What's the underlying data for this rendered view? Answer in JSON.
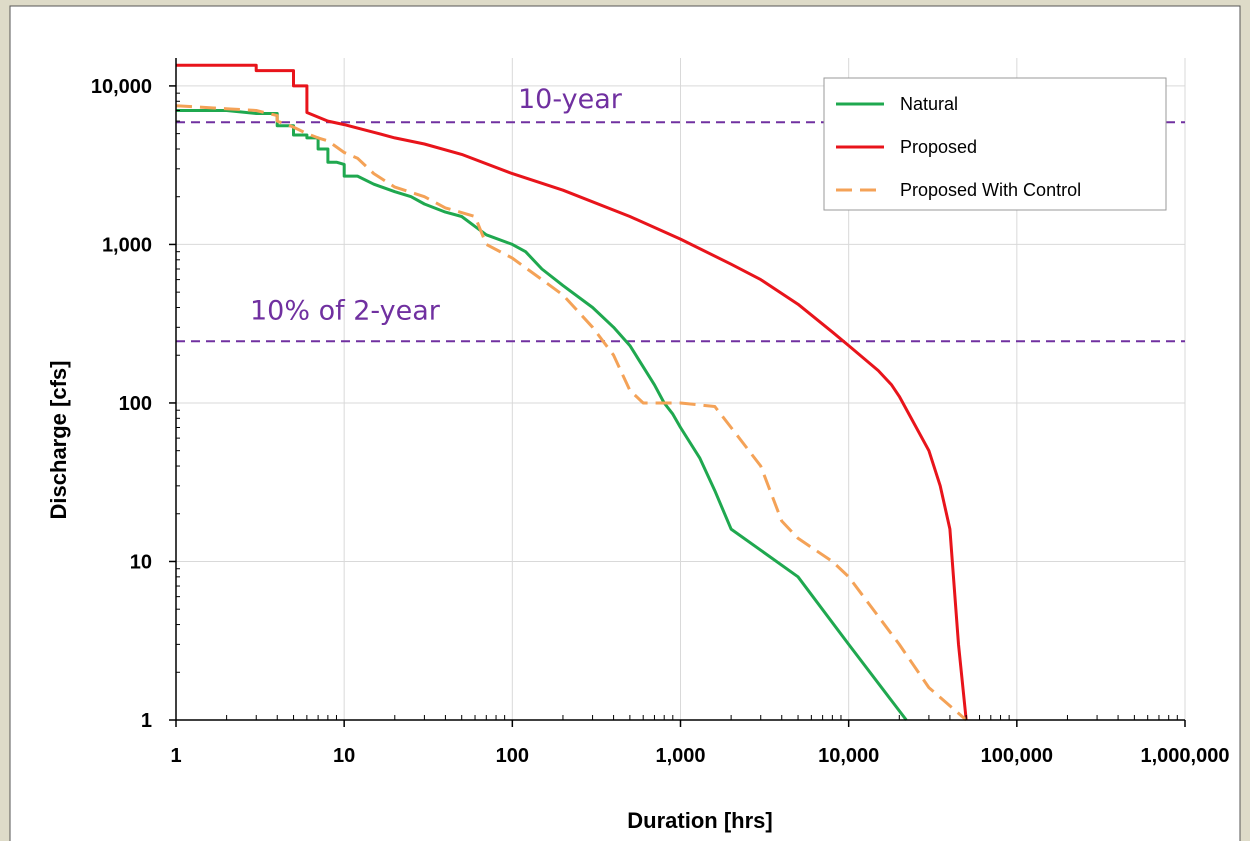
{
  "chart_data": {
    "type": "line",
    "xlabel": "Duration [hrs]",
    "ylabel": "Discharge [cfs]",
    "xscale": "log",
    "yscale": "log",
    "xlim": [
      1,
      1000000
    ],
    "ylim": [
      1,
      15000
    ],
    "grid": true,
    "legend_position": "top-right",
    "x_ticks": [
      {
        "value": 1,
        "label": "1"
      },
      {
        "value": 10,
        "label": "10"
      },
      {
        "value": 100,
        "label": "100"
      },
      {
        "value": 1000,
        "label": "1,000"
      },
      {
        "value": 10000,
        "label": "10,000"
      },
      {
        "value": 100000,
        "label": "100,000"
      },
      {
        "value": 1000000,
        "label": "1,000,000"
      }
    ],
    "y_ticks": [
      {
        "value": 1,
        "label": "1"
      },
      {
        "value": 10,
        "label": "10"
      },
      {
        "value": 100,
        "label": "100"
      },
      {
        "value": 1000,
        "label": "1,000"
      },
      {
        "value": 10000,
        "label": "10,000"
      }
    ],
    "reference_lines": [
      {
        "label": "10-year",
        "value": 5900,
        "color": "#7030a0"
      },
      {
        "label": "10% of 2-year",
        "value": 245,
        "color": "#7030a0"
      }
    ],
    "series": [
      {
        "name": "Natural",
        "color": "#1fa84f",
        "style": "solid",
        "points": [
          [
            1,
            7000
          ],
          [
            2,
            7000
          ],
          [
            3,
            6700
          ],
          [
            4,
            6700
          ],
          [
            4,
            5600
          ],
          [
            5,
            5600
          ],
          [
            5,
            4900
          ],
          [
            6,
            4900
          ],
          [
            6,
            4700
          ],
          [
            7,
            4700
          ],
          [
            7,
            4000
          ],
          [
            8,
            4000
          ],
          [
            8,
            3300
          ],
          [
            9,
            3300
          ],
          [
            10,
            3200
          ],
          [
            10,
            2700
          ],
          [
            12,
            2700
          ],
          [
            15,
            2400
          ],
          [
            20,
            2150
          ],
          [
            25,
            2000
          ],
          [
            30,
            1800
          ],
          [
            40,
            1600
          ],
          [
            50,
            1500
          ],
          [
            60,
            1300
          ],
          [
            70,
            1150
          ],
          [
            100,
            1000
          ],
          [
            120,
            900
          ],
          [
            150,
            700
          ],
          [
            200,
            550
          ],
          [
            300,
            400
          ],
          [
            400,
            300
          ],
          [
            500,
            230
          ],
          [
            700,
            130
          ],
          [
            800,
            100
          ],
          [
            900,
            85
          ],
          [
            1000,
            70
          ],
          [
            1300,
            45
          ],
          [
            1600,
            28
          ],
          [
            2000,
            16
          ],
          [
            5000,
            8
          ],
          [
            10000,
            3
          ],
          [
            22000,
            1
          ]
        ]
      },
      {
        "name": "Proposed",
        "color": "#e8141b",
        "style": "solid",
        "points": [
          [
            1,
            13500
          ],
          [
            3,
            13500
          ],
          [
            3,
            12500
          ],
          [
            5,
            12500
          ],
          [
            5,
            10000
          ],
          [
            6,
            10000
          ],
          [
            6,
            6800
          ],
          [
            8,
            6000
          ],
          [
            10,
            5700
          ],
          [
            15,
            5100
          ],
          [
            20,
            4700
          ],
          [
            30,
            4300
          ],
          [
            50,
            3700
          ],
          [
            100,
            2800
          ],
          [
            200,
            2200
          ],
          [
            500,
            1500
          ],
          [
            1000,
            1080
          ],
          [
            2000,
            750
          ],
          [
            3000,
            600
          ],
          [
            5000,
            420
          ],
          [
            8000,
            280
          ],
          [
            10000,
            230
          ],
          [
            15000,
            160
          ],
          [
            18000,
            130
          ],
          [
            20000,
            110
          ],
          [
            30000,
            50
          ],
          [
            35000,
            30
          ],
          [
            40000,
            16
          ],
          [
            45000,
            3
          ],
          [
            50000,
            1
          ]
        ]
      },
      {
        "name": "Proposed With Control",
        "color": "#f4a257",
        "style": "dashed",
        "points": [
          [
            1,
            7500
          ],
          [
            3,
            7000
          ],
          [
            4,
            6500
          ],
          [
            4,
            6000
          ],
          [
            5,
            5500
          ],
          [
            6,
            5000
          ],
          [
            7,
            4700
          ],
          [
            8,
            4500
          ],
          [
            10,
            3800
          ],
          [
            12,
            3500
          ],
          [
            15,
            2800
          ],
          [
            20,
            2300
          ],
          [
            30,
            2000
          ],
          [
            40,
            1700
          ],
          [
            60,
            1500
          ],
          [
            70,
            1000
          ],
          [
            100,
            820
          ],
          [
            150,
            600
          ],
          [
            200,
            480
          ],
          [
            300,
            300
          ],
          [
            400,
            200
          ],
          [
            500,
            120
          ],
          [
            600,
            100
          ],
          [
            1000,
            100
          ],
          [
            1600,
            95
          ],
          [
            2000,
            70
          ],
          [
            3000,
            40
          ],
          [
            4000,
            18
          ],
          [
            5000,
            14
          ],
          [
            8000,
            10
          ],
          [
            10000,
            8
          ],
          [
            20000,
            3
          ],
          [
            30000,
            1.6
          ],
          [
            50000,
            1
          ]
        ]
      }
    ]
  }
}
